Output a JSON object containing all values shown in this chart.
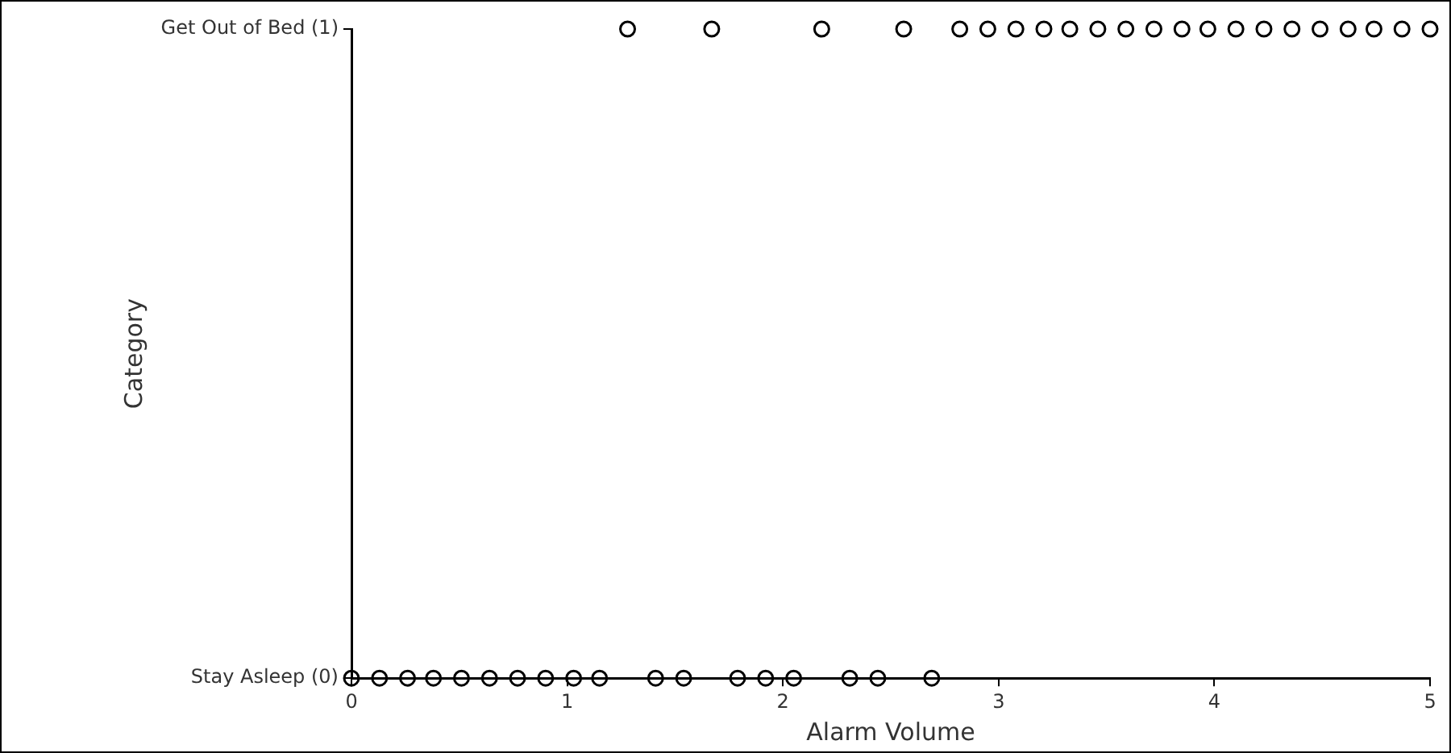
{
  "chart_data": {
    "type": "scatter",
    "xlabel": "Alarm Volume",
    "ylabel": "Category",
    "x": [
      0,
      0.13,
      0.26,
      0.38,
      0.51,
      0.64,
      0.77,
      0.9,
      1.03,
      1.15,
      1.28,
      1.41,
      1.54,
      1.67,
      1.79,
      1.92,
      2.05,
      2.18,
      2.31,
      2.44,
      2.56,
      2.69,
      2.82,
      2.95,
      3.08,
      3.21,
      3.33,
      3.46,
      3.59,
      3.72,
      3.85,
      3.97,
      4.1,
      4.23,
      4.36,
      4.49,
      4.62,
      4.74,
      4.87,
      5
    ],
    "values": [
      0,
      0,
      0,
      0,
      0,
      0,
      0,
      0,
      0,
      0,
      1,
      0,
      0,
      1,
      0,
      0,
      0,
      1,
      0,
      0,
      1,
      0,
      1,
      1,
      1,
      1,
      1,
      1,
      1,
      1,
      1,
      1,
      1,
      1,
      1,
      1,
      1,
      1,
      1,
      1
    ],
    "color": "#000000",
    "marker": "circle",
    "grid": false,
    "legend": false,
    "xlim": [
      0,
      5
    ],
    "xticks": [
      0,
      1,
      2,
      3,
      4,
      5
    ],
    "ylim": [
      0,
      1
    ],
    "yticks": [
      {
        "value": 0,
        "label": "Stay Asleep (0)"
      },
      {
        "value": 1,
        "label": "Get Out of Bed (1)"
      }
    ]
  }
}
